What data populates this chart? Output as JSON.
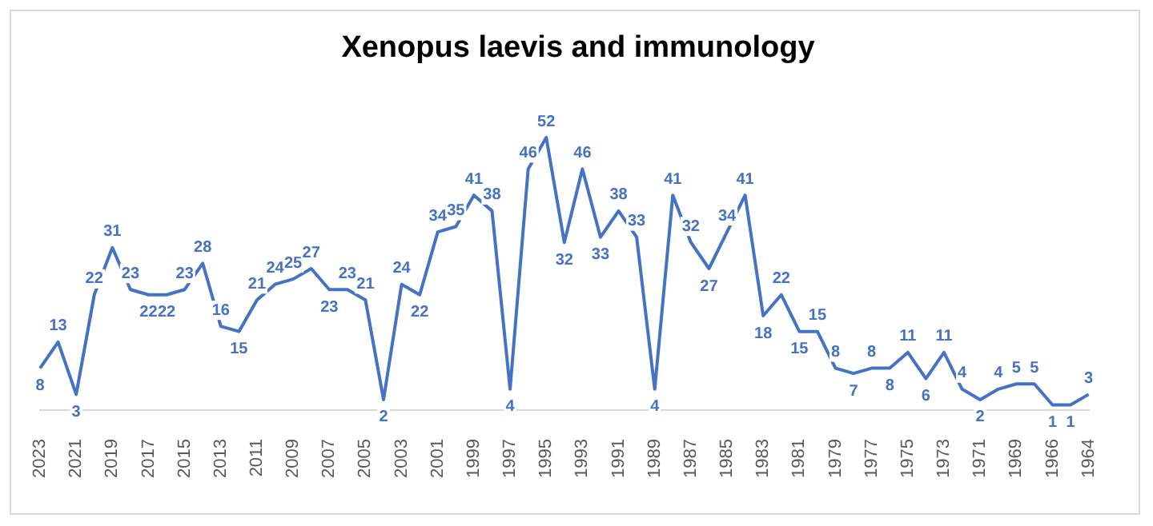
{
  "chart_data": {
    "type": "line",
    "title": "Xenopus laevis and immunology",
    "categories": [
      "2023",
      null,
      "2021",
      null,
      "2019",
      null,
      "2017",
      null,
      "2015",
      null,
      "2013",
      null,
      "2011",
      null,
      "2009",
      null,
      "2007",
      null,
      "2005",
      null,
      "2003",
      null,
      "2001",
      null,
      "1999",
      null,
      "1997",
      null,
      "1995",
      null,
      "1993",
      null,
      "1991",
      null,
      "1989",
      null,
      "1987",
      null,
      "1985",
      null,
      "1983",
      null,
      "1981",
      null,
      "1979",
      null,
      "1977",
      null,
      "1975",
      null,
      "1973",
      null,
      "1971",
      null,
      "1969",
      null,
      "1966",
      null,
      "1964"
    ],
    "values": [
      8,
      13,
      3,
      22,
      31,
      23,
      22,
      22,
      23,
      28,
      16,
      15,
      21,
      24,
      25,
      27,
      23,
      23,
      21,
      2,
      24,
      22,
      34,
      35,
      41,
      38,
      4,
      46,
      52,
      32,
      46,
      33,
      38,
      33,
      4,
      41,
      32,
      27,
      34,
      41,
      18,
      22,
      15,
      15,
      8,
      7,
      8,
      8,
      11,
      6,
      11,
      4,
      2,
      4,
      5,
      5,
      1,
      1,
      3
    ],
    "color": "#4472c4",
    "data_labels": true,
    "marker": "none",
    "grid": false,
    "legend": false
  }
}
